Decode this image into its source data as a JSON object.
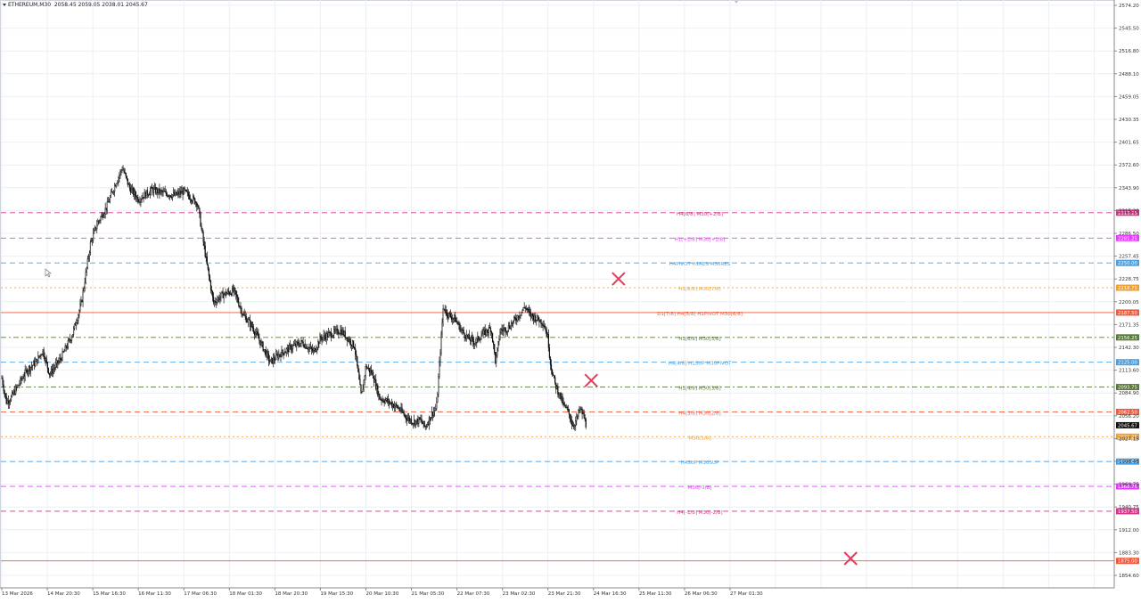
{
  "header": {
    "symbol": "ETHEREUM,M30",
    "ohlc": "2058.45 2059.05 2038.01 2045.67"
  },
  "chart_data": {
    "type": "candlestick",
    "title": "",
    "ylim": [
      1840,
      2580
    ],
    "price_ticks": [
      "2574.20",
      "2545.50",
      "2516.80",
      "2488.10",
      "2459.05",
      "2430.35",
      "2401.65",
      "2372.60",
      "2343.90",
      "2315.20",
      "2286.50",
      "2257.45",
      "2228.75",
      "2200.05",
      "2171.35",
      "2142.30",
      "2113.60",
      "2084.90",
      "2056.20",
      "2027.15",
      "1998.45",
      "1969.75",
      "1940.75",
      "1912.00",
      "1883.30",
      "1854.60"
    ],
    "time_ticks": [
      "13 Mar 2026",
      "14 Mar 20:30",
      "15 Mar 16:30",
      "16 Mar 11:30",
      "17 Mar 06:30",
      "18 Mar 01:30",
      "18 Mar 20:30",
      "19 Mar 15:30",
      "20 Mar 10:30",
      "21 Mar 05:30",
      "22 Mar 07:30",
      "23 Mar 02:30",
      "23 Mar 21:30",
      "24 Mar 16:30",
      "25 Mar 11:30",
      "26 Mar 06:30",
      "27 Mar 01:30"
    ],
    "current_price": "2045.67",
    "price_path": [
      [
        0,
        2105
      ],
      [
        0.05,
        2090
      ],
      [
        0.1,
        2075
      ],
      [
        0.2,
        2080
      ],
      [
        0.4,
        2100
      ],
      [
        0.55,
        2115
      ],
      [
        0.75,
        2125
      ],
      [
        0.9,
        2140
      ],
      [
        1.05,
        2110
      ],
      [
        1.3,
        2130
      ],
      [
        1.55,
        2160
      ],
      [
        1.75,
        2200
      ],
      [
        1.95,
        2275
      ],
      [
        2.1,
        2300
      ],
      [
        2.3,
        2320
      ],
      [
        2.5,
        2350
      ],
      [
        2.65,
        2370
      ],
      [
        2.8,
        2345
      ],
      [
        3.0,
        2330
      ],
      [
        3.3,
        2342
      ],
      [
        3.55,
        2338
      ],
      [
        3.8,
        2335
      ],
      [
        4.0,
        2340
      ],
      [
        4.3,
        2325
      ],
      [
        4.5,
        2250
      ],
      [
        4.65,
        2200
      ],
      [
        4.85,
        2210
      ],
      [
        5.1,
        2215
      ],
      [
        5.3,
        2185
      ],
      [
        5.5,
        2170
      ],
      [
        5.7,
        2148
      ],
      [
        5.9,
        2125
      ],
      [
        6.1,
        2135
      ],
      [
        6.4,
        2145
      ],
      [
        6.6,
        2150
      ],
      [
        6.85,
        2138
      ],
      [
        7.0,
        2155
      ],
      [
        7.2,
        2160
      ],
      [
        7.45,
        2165
      ],
      [
        7.6,
        2155
      ],
      [
        7.75,
        2145
      ],
      [
        7.9,
        2080
      ],
      [
        8.0,
        2120
      ],
      [
        8.15,
        2110
      ],
      [
        8.3,
        2080
      ],
      [
        8.5,
        2075
      ],
      [
        8.7,
        2068
      ],
      [
        8.9,
        2055
      ],
      [
        9.05,
        2050
      ],
      [
        9.2,
        2052
      ],
      [
        9.3,
        2043
      ],
      [
        9.45,
        2060
      ],
      [
        9.55,
        2068
      ],
      [
        9.7,
        2195
      ],
      [
        9.8,
        2185
      ],
      [
        9.95,
        2180
      ],
      [
        10.1,
        2165
      ],
      [
        10.25,
        2155
      ],
      [
        10.4,
        2150
      ],
      [
        10.55,
        2160
      ],
      [
        10.75,
        2168
      ],
      [
        10.85,
        2125
      ],
      [
        10.95,
        2165
      ],
      [
        11.1,
        2167
      ],
      [
        11.3,
        2180
      ],
      [
        11.5,
        2195
      ],
      [
        11.6,
        2185
      ],
      [
        11.75,
        2180
      ],
      [
        11.9,
        2175
      ],
      [
        12.0,
        2155
      ],
      [
        12.05,
        2125
      ],
      [
        12.15,
        2098
      ],
      [
        12.25,
        2085
      ],
      [
        12.35,
        2070
      ],
      [
        12.45,
        2062
      ],
      [
        12.55,
        2045
      ],
      [
        12.62,
        2052
      ],
      [
        12.7,
        2066
      ],
      [
        12.78,
        2058
      ],
      [
        12.84,
        2045
      ]
    ],
    "levels": [
      {
        "price": 2313.25,
        "label": "H4[6/8] M30[+2/8]",
        "tag": "2313.25",
        "color": "#d6338a",
        "dash": "6,4"
      },
      {
        "price": 2281.25,
        "label": "H1[+2/8] M30[+1/8]",
        "tag": "2281.25",
        "color": "#e040fb",
        "dash": "6,4"
      },
      {
        "price": 2250.0,
        "label": "H4PIVOT H1RES M30RES",
        "tag": "2250.00",
        "color": "#4a9fe0",
        "dash": "6,4"
      },
      {
        "price": 2218.75,
        "label": "H1[8/8] M30[7/8]",
        "tag": "2218.75",
        "color": "#f0a030",
        "dash": "2,3"
      },
      {
        "price": 2187.5,
        "label": "D1[7/8] H4[5/8] H1PIVOT M30[6/8]",
        "tag": "2187.50",
        "color": "#f05a3c",
        "dash": ""
      },
      {
        "price": 2156.25,
        "label": "H1[6/8] M30[5/8]",
        "tag": "2156.25",
        "color": "#5a7a3a",
        "dash": "6,3,2,3"
      },
      {
        "price": 2125.0,
        "label": "H4[4/8] H1SUP M30PIVOT",
        "tag": "2125.00",
        "color": "#4a9fe0",
        "dash": "6,4"
      },
      {
        "price": 2093.75,
        "label": "H1[4/8] M30[3/8]",
        "tag": "2093.75",
        "color": "#5a7a3a",
        "dash": "6,3,2,3"
      },
      {
        "price": 2062.5,
        "label": "H4[3/8] M30[2/8]",
        "tag": "2062.50",
        "color": "#f05a3c",
        "dash": "6,4"
      },
      {
        "price": 2031.25,
        "label": "M30[1/8]",
        "tag": "2031.25",
        "color": "#f0a030",
        "dash": "2,3"
      },
      {
        "price": 2000.0,
        "label": "H4SUP M30SUP",
        "tag": "2000.00",
        "color": "#4a9fe0",
        "dash": "6,4"
      },
      {
        "price": 1968.75,
        "label": "M30[-1/8]",
        "tag": "1968.75",
        "color": "#e040fb",
        "dash": "6,4"
      },
      {
        "price": 1937.5,
        "label": "H4[-1/8] M30[-2/8]",
        "tag": "1937.50",
        "color": "#d6338a",
        "dash": "6,4"
      },
      {
        "price": 1875.0,
        "label": "",
        "tag": "1875.00",
        "color": "#f05a3c",
        "dash": ""
      }
    ],
    "markers": [
      {
        "time_index": 13.55,
        "price": 2230,
        "color": "#e8385a"
      },
      {
        "time_index": 12.95,
        "price": 2102,
        "color": "#e8385a"
      },
      {
        "time_index": 18.65,
        "price": 1878,
        "color": "#e8385a"
      }
    ],
    "grid": true
  },
  "colors": {
    "candle": "#111111",
    "grid": "#eceff4",
    "current_price_bg": "#111111",
    "current_price_fg": "#ffffff",
    "axis": "#888888"
  }
}
